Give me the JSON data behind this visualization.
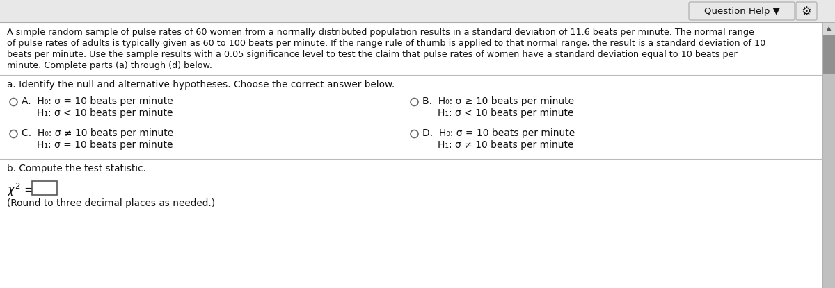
{
  "bg_color": "#c8c8c8",
  "top_bar_color": "#e8e8e8",
  "panel_color": "#f5f5f5",
  "content_color": "#f0f0f0",
  "btn_color": "#e8e8e8",
  "btn_border": "#aaaaaa",
  "paragraph": "A simple random sample of pulse rates of 60 women from a normally distributed population results in a standard deviation of 11.6 beats per minute. The normal range\nof pulse rates of adults is typically given as 60 to 100 beats per minute. If the range rule of thumb is applied to that normal range, the result is a standard deviation of 10\nbeats per minute. Use the sample results with a 0.05 significance level to test the claim that pulse rates of women have a standard deviation equal to 10 beats per\nminute. Complete parts (a) through (d) below.",
  "section_a_label": "a. Identify the null and alternative hypotheses. Choose the correct answer below.",
  "optA1": "H₀: σ = 10 beats per minute",
  "optA2": "H₁: σ < 10 beats per minute",
  "optB1": "H₀: σ ≥ 10 beats per minute",
  "optB2": "H₁: σ < 10 beats per minute",
  "optC1": "H₀: σ ≠ 10 beats per minute",
  "optC2": "H₁: σ = 10 beats per minute",
  "optD1": "H₀: σ = 10 beats per minute",
  "optD2": "H₁: σ ≠ 10 beats per minute",
  "section_b_label": "b. Compute the test statistic.",
  "round_note": "(Round to three decimal places as needed.)",
  "scrollbar_bg": "#c0c0c0",
  "scrollbar_thumb": "#909090",
  "text_color": "#111111",
  "divider_color": "#bbbbbb",
  "font_size_para": 9.2,
  "font_size_opt": 10.0,
  "font_size_section": 9.8,
  "font_size_btn": 9.5
}
